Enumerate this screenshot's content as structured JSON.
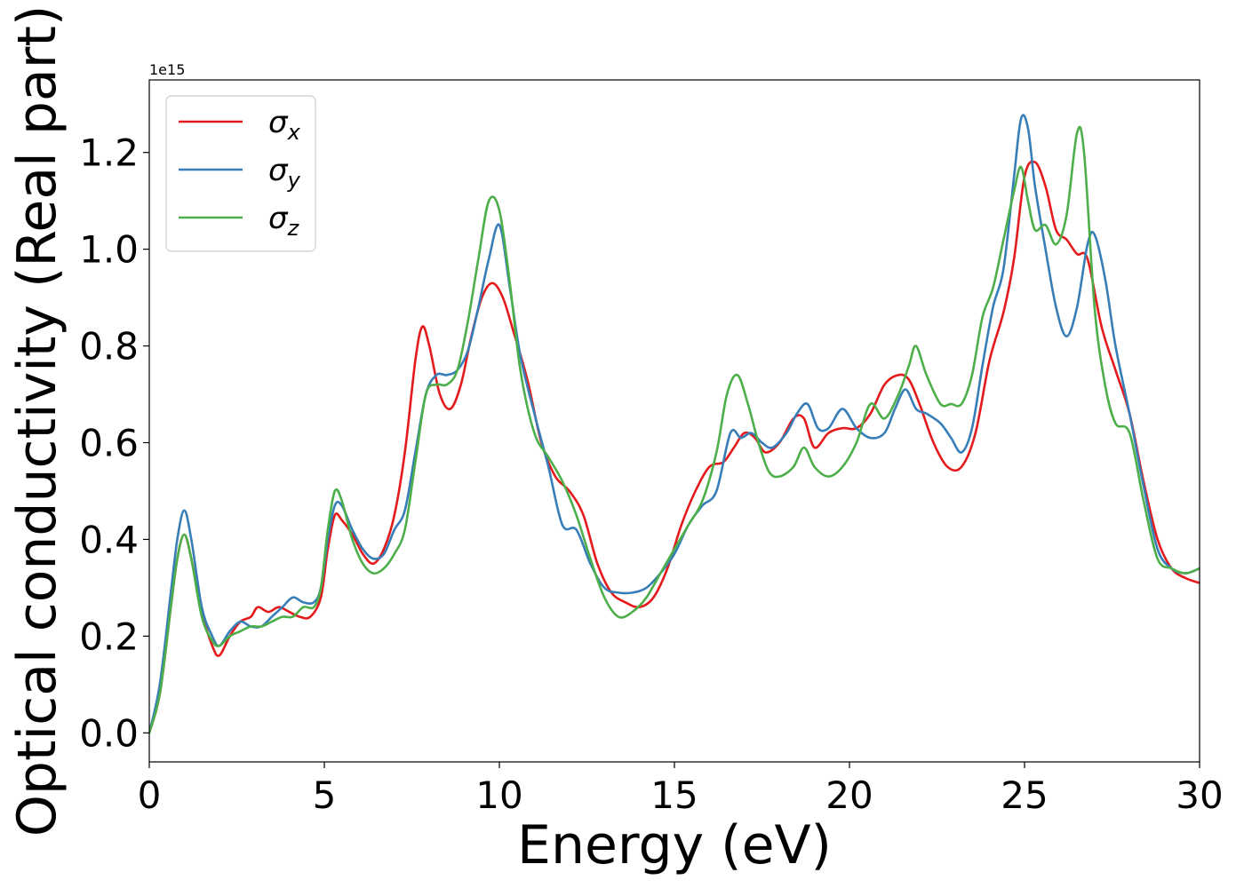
{
  "chart_data": {
    "type": "line",
    "title": "",
    "xlabel": "Energy (eV)",
    "ylabel": "Optical conductivity (Real part)",
    "y_offset_label": "1e15",
    "xlim": [
      0,
      30
    ],
    "ylim": [
      -0.06,
      1.35
    ],
    "xticks": [
      0,
      5,
      10,
      15,
      20,
      25,
      30
    ],
    "xtick_labels": [
      "0",
      "5",
      "10",
      "15",
      "20",
      "25",
      "30"
    ],
    "yticks": [
      0.0,
      0.2,
      0.4,
      0.6,
      0.8,
      1.0,
      1.2
    ],
    "ytick_labels": [
      "0.0",
      "0.2",
      "0.4",
      "0.6",
      "0.8",
      "1.0",
      "1.2"
    ],
    "grid": false,
    "legend_position": "top-left",
    "series": [
      {
        "name": "σx",
        "name_base": "σ",
        "name_sub": "x",
        "color": "#e41a1c",
        "x": [
          0,
          0.3,
          0.6,
          0.8,
          1.0,
          1.2,
          1.5,
          1.8,
          2.0,
          2.3,
          2.6,
          2.9,
          3.1,
          3.4,
          3.7,
          4.0,
          4.3,
          4.6,
          4.9,
          5.1,
          5.3,
          5.5,
          5.8,
          6.1,
          6.4,
          6.7,
          7.0,
          7.3,
          7.6,
          7.8,
          8.0,
          8.3,
          8.6,
          8.9,
          9.2,
          9.5,
          9.8,
          10.1,
          10.4,
          10.8,
          11.2,
          11.6,
          12.0,
          12.4,
          12.8,
          13.2,
          13.6,
          14.0,
          14.4,
          14.8,
          15.2,
          15.6,
          16.0,
          16.4,
          16.7,
          17.0,
          17.3,
          17.6,
          18.0,
          18.4,
          18.7,
          19.0,
          19.4,
          19.8,
          20.2,
          20.6,
          21.0,
          21.4,
          21.7,
          22.0,
          22.4,
          22.8,
          23.2,
          23.6,
          24.0,
          24.4,
          24.7,
          25.0,
          25.3,
          25.6,
          25.9,
          26.2,
          26.5,
          26.8,
          27.2,
          27.6,
          28.0,
          28.4,
          28.8,
          29.2,
          29.6,
          30.0
        ],
        "y": [
          0.0,
          0.08,
          0.25,
          0.36,
          0.41,
          0.36,
          0.25,
          0.18,
          0.16,
          0.2,
          0.23,
          0.24,
          0.26,
          0.25,
          0.26,
          0.25,
          0.24,
          0.24,
          0.28,
          0.38,
          0.45,
          0.44,
          0.41,
          0.37,
          0.35,
          0.38,
          0.45,
          0.58,
          0.77,
          0.84,
          0.8,
          0.7,
          0.67,
          0.72,
          0.82,
          0.9,
          0.93,
          0.9,
          0.83,
          0.73,
          0.6,
          0.53,
          0.5,
          0.45,
          0.35,
          0.29,
          0.27,
          0.26,
          0.28,
          0.34,
          0.43,
          0.5,
          0.55,
          0.56,
          0.59,
          0.62,
          0.61,
          0.58,
          0.6,
          0.65,
          0.65,
          0.59,
          0.62,
          0.63,
          0.63,
          0.66,
          0.72,
          0.74,
          0.73,
          0.68,
          0.6,
          0.55,
          0.55,
          0.62,
          0.77,
          0.87,
          0.98,
          1.15,
          1.18,
          1.13,
          1.04,
          1.02,
          0.99,
          0.98,
          0.84,
          0.75,
          0.66,
          0.52,
          0.4,
          0.34,
          0.32,
          0.31
        ]
      },
      {
        "name": "σy",
        "name_base": "σ",
        "name_sub": "y",
        "color": "#377eb8",
        "x": [
          0,
          0.3,
          0.6,
          0.8,
          1.0,
          1.2,
          1.5,
          1.8,
          2.0,
          2.3,
          2.6,
          2.9,
          3.2,
          3.5,
          3.8,
          4.1,
          4.4,
          4.7,
          4.9,
          5.1,
          5.3,
          5.5,
          5.8,
          6.1,
          6.4,
          6.7,
          7.0,
          7.3,
          7.6,
          7.9,
          8.2,
          8.5,
          8.8,
          9.1,
          9.4,
          9.7,
          10.0,
          10.3,
          10.6,
          11.0,
          11.4,
          11.8,
          12.2,
          12.6,
          13.0,
          13.4,
          13.8,
          14.2,
          14.6,
          15.0,
          15.4,
          15.8,
          16.2,
          16.6,
          16.9,
          17.2,
          17.5,
          17.8,
          18.2,
          18.5,
          18.8,
          19.1,
          19.4,
          19.8,
          20.2,
          20.6,
          21.0,
          21.3,
          21.6,
          21.9,
          22.2,
          22.6,
          22.9,
          23.2,
          23.5,
          23.8,
          24.1,
          24.4,
          24.7,
          24.9,
          25.1,
          25.3,
          25.6,
          25.9,
          26.2,
          26.5,
          26.8,
          27.0,
          27.3,
          27.6,
          28.0,
          28.4,
          28.8,
          29.2,
          29.6,
          30.0
        ],
        "y": [
          0.0,
          0.1,
          0.28,
          0.4,
          0.46,
          0.4,
          0.26,
          0.2,
          0.18,
          0.21,
          0.23,
          0.22,
          0.22,
          0.24,
          0.26,
          0.28,
          0.27,
          0.27,
          0.3,
          0.4,
          0.47,
          0.47,
          0.42,
          0.38,
          0.36,
          0.37,
          0.42,
          0.46,
          0.58,
          0.7,
          0.74,
          0.74,
          0.75,
          0.79,
          0.88,
          0.98,
          1.05,
          0.92,
          0.78,
          0.66,
          0.55,
          0.43,
          0.42,
          0.35,
          0.3,
          0.29,
          0.29,
          0.3,
          0.33,
          0.37,
          0.43,
          0.47,
          0.5,
          0.62,
          0.61,
          0.62,
          0.6,
          0.59,
          0.62,
          0.66,
          0.68,
          0.63,
          0.63,
          0.67,
          0.63,
          0.61,
          0.62,
          0.67,
          0.71,
          0.67,
          0.66,
          0.64,
          0.61,
          0.58,
          0.63,
          0.76,
          0.88,
          0.96,
          1.15,
          1.27,
          1.25,
          1.13,
          1.0,
          0.88,
          0.82,
          0.88,
          1.01,
          1.03,
          0.94,
          0.8,
          0.66,
          0.51,
          0.38,
          0.34,
          0.33,
          0.34
        ]
      },
      {
        "name": "σz",
        "name_base": "σ",
        "name_sub": "z",
        "color": "#4daf4a",
        "x": [
          0,
          0.3,
          0.6,
          0.8,
          1.0,
          1.2,
          1.5,
          1.8,
          2.0,
          2.3,
          2.6,
          2.9,
          3.2,
          3.5,
          3.8,
          4.1,
          4.4,
          4.7,
          4.9,
          5.1,
          5.3,
          5.5,
          5.8,
          6.1,
          6.4,
          6.7,
          7.0,
          7.3,
          7.6,
          7.9,
          8.2,
          8.5,
          8.8,
          9.1,
          9.4,
          9.7,
          10.0,
          10.3,
          10.6,
          11.0,
          11.4,
          11.8,
          12.2,
          12.6,
          13.0,
          13.4,
          13.8,
          14.2,
          14.6,
          15.0,
          15.4,
          15.8,
          16.2,
          16.5,
          16.8,
          17.1,
          17.4,
          17.7,
          18.0,
          18.4,
          18.7,
          19.0,
          19.4,
          19.8,
          20.2,
          20.6,
          21.0,
          21.4,
          21.7,
          21.9,
          22.2,
          22.6,
          22.9,
          23.2,
          23.5,
          23.8,
          24.1,
          24.4,
          24.7,
          24.9,
          25.1,
          25.3,
          25.6,
          25.9,
          26.2,
          26.5,
          26.7,
          27.0,
          27.3,
          27.6,
          28.0,
          28.4,
          28.8,
          29.2,
          29.6,
          30.0
        ],
        "y": [
          0.0,
          0.08,
          0.25,
          0.36,
          0.41,
          0.36,
          0.24,
          0.19,
          0.18,
          0.2,
          0.21,
          0.22,
          0.22,
          0.23,
          0.24,
          0.24,
          0.26,
          0.26,
          0.3,
          0.42,
          0.5,
          0.48,
          0.4,
          0.35,
          0.33,
          0.34,
          0.37,
          0.42,
          0.56,
          0.7,
          0.72,
          0.72,
          0.75,
          0.85,
          0.98,
          1.1,
          1.08,
          0.93,
          0.75,
          0.62,
          0.57,
          0.52,
          0.45,
          0.36,
          0.28,
          0.24,
          0.25,
          0.28,
          0.33,
          0.38,
          0.43,
          0.48,
          0.58,
          0.7,
          0.74,
          0.68,
          0.6,
          0.54,
          0.53,
          0.55,
          0.59,
          0.55,
          0.53,
          0.55,
          0.6,
          0.68,
          0.65,
          0.7,
          0.76,
          0.8,
          0.74,
          0.68,
          0.68,
          0.68,
          0.74,
          0.86,
          0.92,
          1.02,
          1.12,
          1.17,
          1.1,
          1.04,
          1.05,
          1.01,
          1.07,
          1.24,
          1.2,
          0.88,
          0.72,
          0.64,
          0.62,
          0.48,
          0.36,
          0.34,
          0.33,
          0.34
        ]
      }
    ]
  }
}
